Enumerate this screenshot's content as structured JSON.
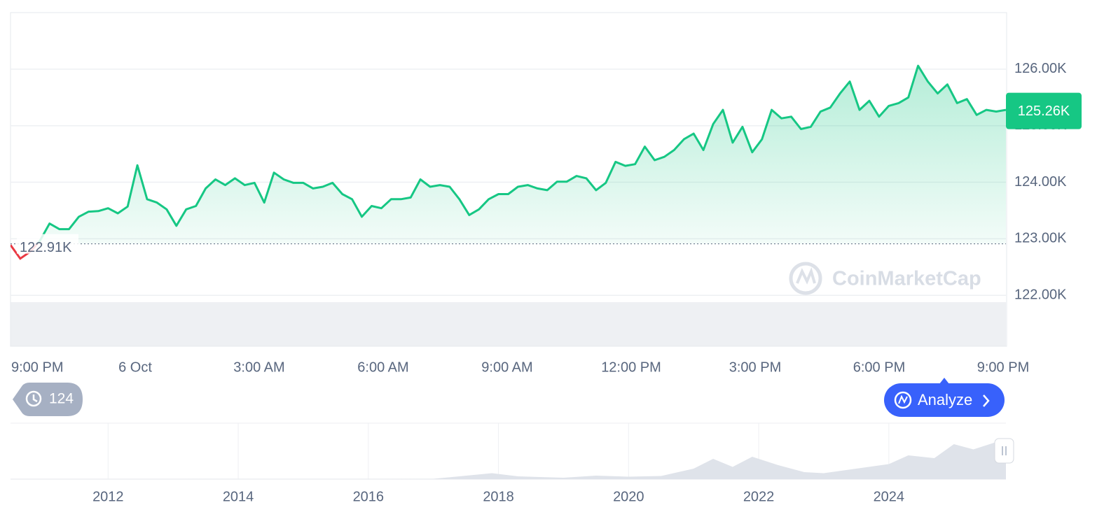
{
  "chart_data": [
    {
      "type": "line",
      "xticks": [
        "9:00 PM",
        "6 Oct",
        "3:00 AM",
        "6:00 AM",
        "9:00 AM",
        "12:00 PM",
        "3:00 PM",
        "6:00 PM",
        "9:00 PM"
      ],
      "values": [
        122.89,
        122.65,
        122.77,
        122.96,
        123.27,
        123.17,
        123.17,
        123.39,
        123.48,
        123.49,
        123.54,
        123.45,
        123.57,
        124.3,
        123.7,
        123.64,
        123.52,
        123.23,
        123.52,
        123.58,
        123.89,
        124.05,
        123.95,
        124.07,
        123.95,
        123.99,
        123.64,
        124.17,
        124.05,
        123.99,
        123.99,
        123.89,
        123.92,
        123.99,
        123.79,
        123.7,
        123.39,
        123.58,
        123.54,
        123.7,
        123.7,
        123.73,
        124.05,
        123.92,
        123.95,
        123.92,
        123.7,
        123.42,
        123.52,
        123.7,
        123.79,
        123.79,
        123.92,
        123.95,
        123.89,
        123.86,
        124.01,
        124.01,
        124.11,
        124.07,
        123.86,
        123.99,
        124.36,
        124.29,
        124.32,
        124.63,
        124.39,
        124.45,
        124.57,
        124.76,
        124.86,
        124.57,
        125.03,
        125.28,
        124.7,
        124.98,
        124.53,
        124.76,
        125.28,
        125.13,
        125.16,
        124.94,
        124.98,
        125.25,
        125.32,
        125.57,
        125.78,
        125.28,
        125.44,
        125.16,
        125.35,
        125.4,
        125.5,
        126.06,
        125.78,
        125.57,
        125.73,
        125.4,
        125.47,
        125.19,
        125.28,
        125.25,
        125.28
      ],
      "color": "#16c784",
      "down_color": "#ea3943",
      "ylim": [
        121.1,
        127.0
      ],
      "yticks": [
        {
          "value": 122,
          "label": "122.00K"
        },
        {
          "value": 123,
          "label": "123.00K"
        },
        {
          "value": 124,
          "label": "124.00K"
        },
        {
          "value": 125,
          "label": "125.00K"
        },
        {
          "value": 126,
          "label": "126.00K"
        }
      ],
      "grid": true,
      "baseline": {
        "value": 122.91,
        "label": "122.91K"
      },
      "last_price": {
        "value": 125.26,
        "label": "125.26K"
      }
    },
    {
      "type": "area",
      "x": [
        2010.5,
        2012,
        2013,
        2014,
        2015,
        2016,
        2017,
        2017.9,
        2018.3,
        2019,
        2019.5,
        2020,
        2020.5,
        2021,
        2021.3,
        2021.6,
        2021.9,
        2022.3,
        2022.7,
        2023,
        2023.5,
        2024,
        2024.3,
        2024.7,
        2025,
        2025.3,
        2025.8
      ],
      "values": [
        0,
        0,
        0.1,
        0.5,
        0.3,
        0.4,
        1,
        17,
        8,
        4,
        10,
        7,
        9,
        30,
        58,
        35,
        64,
        40,
        20,
        17,
        30,
        43,
        68,
        60,
        100,
        85,
        115
      ],
      "color": "#dfe3ea",
      "xlim": [
        2010.5,
        2025.8
      ],
      "ylim": [
        0,
        160
      ],
      "xticks": [
        2012,
        2014,
        2016,
        2018,
        2020,
        2022,
        2024
      ]
    }
  ],
  "ui": {
    "history_count": 124,
    "analyze_button": "Analyze",
    "watermark": "CoinMarketCap"
  }
}
